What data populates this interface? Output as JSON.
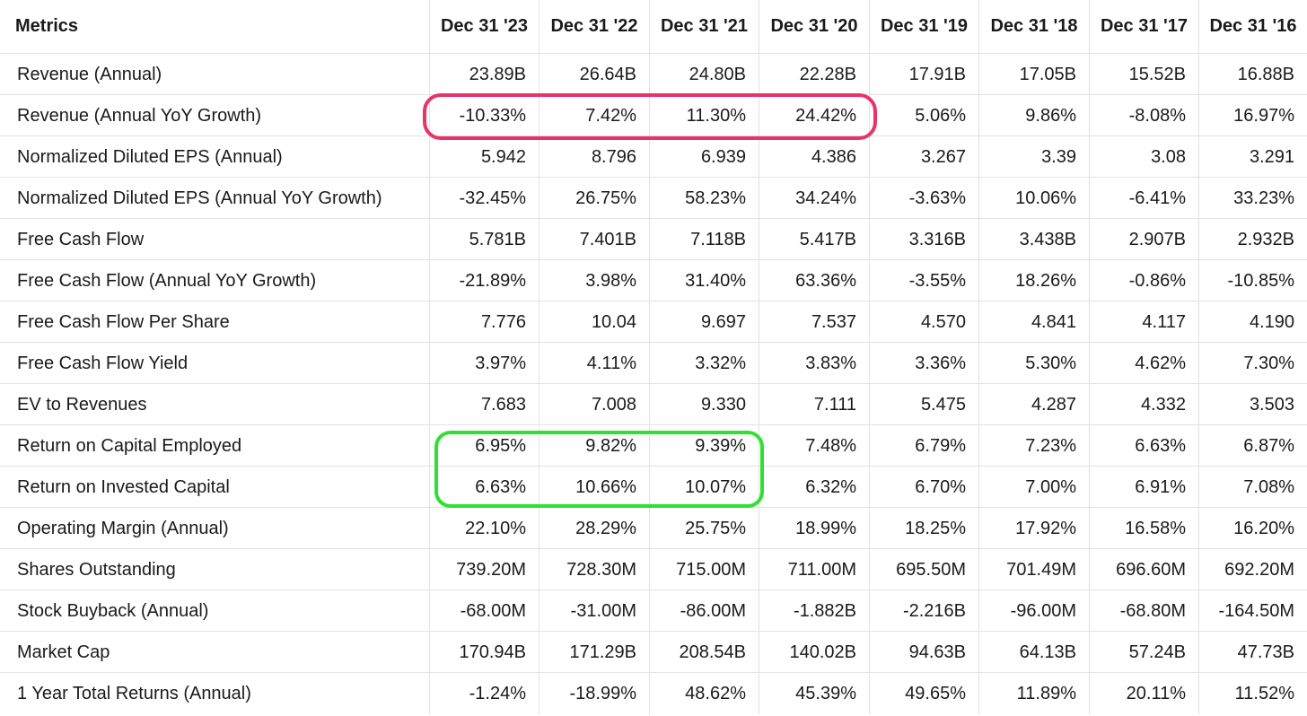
{
  "table": {
    "header": {
      "metric_label": "Metrics",
      "columns": [
        "Dec 31 '23",
        "Dec 31 '22",
        "Dec 31 '21",
        "Dec 31 '20",
        "Dec 31 '19",
        "Dec 31 '18",
        "Dec 31 '17",
        "Dec 31 '16"
      ]
    },
    "rows": [
      {
        "label": "Revenue (Annual)",
        "values": [
          "23.89B",
          "26.64B",
          "24.80B",
          "22.28B",
          "17.91B",
          "17.05B",
          "15.52B",
          "16.88B"
        ]
      },
      {
        "label": "Revenue (Annual YoY Growth)",
        "values": [
          "-10.33%",
          "7.42%",
          "11.30%",
          "24.42%",
          "5.06%",
          "9.86%",
          "-8.08%",
          "16.97%"
        ]
      },
      {
        "label": "Normalized Diluted EPS (Annual)",
        "values": [
          "5.942",
          "8.796",
          "6.939",
          "4.386",
          "3.267",
          "3.39",
          "3.08",
          "3.291"
        ]
      },
      {
        "label": "Normalized Diluted EPS (Annual YoY Growth)",
        "values": [
          "-32.45%",
          "26.75%",
          "58.23%",
          "34.24%",
          "-3.63%",
          "10.06%",
          "-6.41%",
          "33.23%"
        ]
      },
      {
        "label": "Free Cash Flow",
        "values": [
          "5.781B",
          "7.401B",
          "7.118B",
          "5.417B",
          "3.316B",
          "3.438B",
          "2.907B",
          "2.932B"
        ]
      },
      {
        "label": "Free Cash Flow (Annual YoY Growth)",
        "values": [
          "-21.89%",
          "3.98%",
          "31.40%",
          "63.36%",
          "-3.55%",
          "18.26%",
          "-0.86%",
          "-10.85%"
        ]
      },
      {
        "label": "Free Cash Flow Per Share",
        "values": [
          "7.776",
          "10.04",
          "9.697",
          "7.537",
          "4.570",
          "4.841",
          "4.117",
          "4.190"
        ]
      },
      {
        "label": "Free Cash Flow Yield",
        "values": [
          "3.97%",
          "4.11%",
          "3.32%",
          "3.83%",
          "3.36%",
          "5.30%",
          "4.62%",
          "7.30%"
        ]
      },
      {
        "label": "EV to Revenues",
        "values": [
          "7.683",
          "7.008",
          "9.330",
          "7.111",
          "5.475",
          "4.287",
          "4.332",
          "3.503"
        ]
      },
      {
        "label": "Return on Capital Employed",
        "values": [
          "6.95%",
          "9.82%",
          "9.39%",
          "7.48%",
          "6.79%",
          "7.23%",
          "6.63%",
          "6.87%"
        ]
      },
      {
        "label": "Return on Invested Capital",
        "values": [
          "6.63%",
          "10.66%",
          "10.07%",
          "6.32%",
          "6.70%",
          "7.00%",
          "6.91%",
          "7.08%"
        ]
      },
      {
        "label": "Operating Margin (Annual)",
        "values": [
          "22.10%",
          "28.29%",
          "25.75%",
          "18.99%",
          "18.25%",
          "17.92%",
          "16.58%",
          "16.20%"
        ]
      },
      {
        "label": "Shares Outstanding",
        "values": [
          "739.20M",
          "728.30M",
          "715.00M",
          "711.00M",
          "695.50M",
          "701.49M",
          "696.60M",
          "692.20M"
        ]
      },
      {
        "label": "Stock Buyback (Annual)",
        "values": [
          "-68.00M",
          "-31.00M",
          "-86.00M",
          "-1.882B",
          "-2.216B",
          "-96.00M",
          "-68.80M",
          "-164.50M"
        ]
      },
      {
        "label": "Market Cap",
        "values": [
          "170.94B",
          "171.29B",
          "208.54B",
          "140.02B",
          "94.63B",
          "64.13B",
          "57.24B",
          "47.73B"
        ]
      },
      {
        "label": "1 Year Total Returns (Annual)",
        "values": [
          "-1.24%",
          "-18.99%",
          "48.62%",
          "45.39%",
          "49.65%",
          "11.89%",
          "20.11%",
          "11.52%"
        ]
      }
    ]
  },
  "highlights": {
    "pink_color": "#e8336a",
    "green_color": "#2fe02f"
  }
}
